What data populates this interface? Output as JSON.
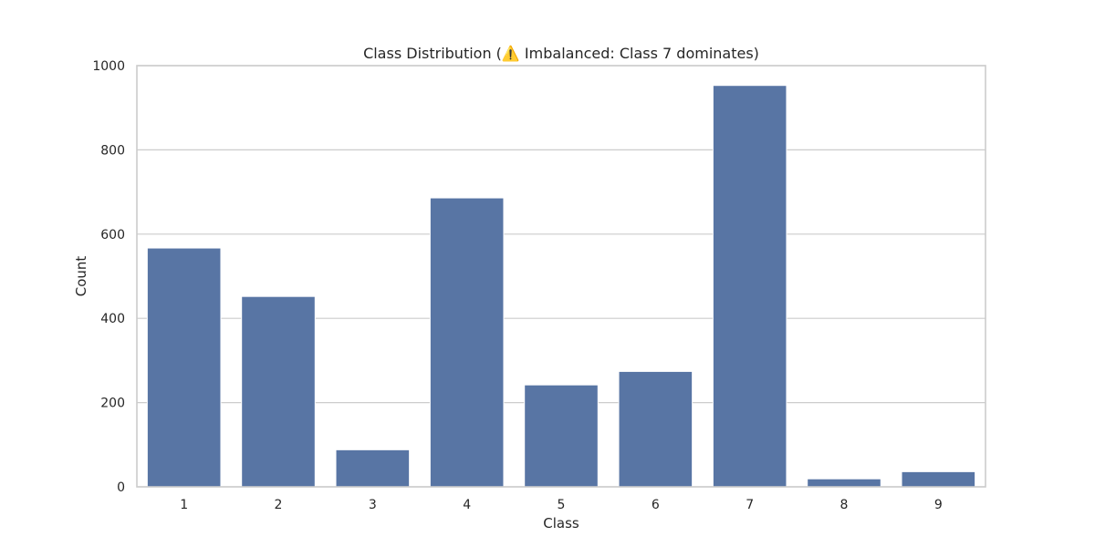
{
  "chart_data": {
    "type": "bar",
    "title": "Class Distribution (⚠️ Imbalanced: Class 7 dominates)",
    "xlabel": "Class",
    "ylabel": "Count",
    "categories": [
      "1",
      "2",
      "3",
      "4",
      "5",
      "6",
      "7",
      "8",
      "9"
    ],
    "values": [
      567,
      452,
      88,
      686,
      242,
      274,
      953,
      19,
      36
    ],
    "ylim": [
      0,
      1000
    ],
    "yticks": [
      0,
      200,
      400,
      600,
      800,
      1000
    ],
    "grid": true,
    "bar_color": "#5875a4",
    "grid_color": "#cccccc"
  }
}
